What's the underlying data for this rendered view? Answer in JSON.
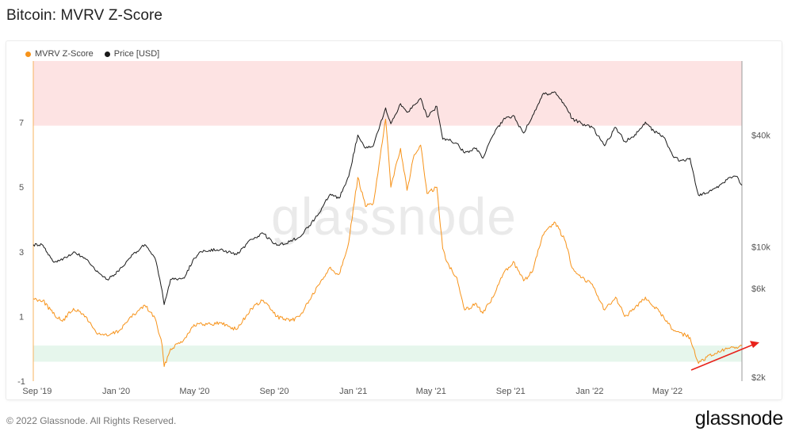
{
  "page": {
    "title": "Bitcoin: MVRV Z-Score",
    "copyright": "© 2022 Glassnode. All Rights Reserved.",
    "brand": "glassnode",
    "watermark": "glassnode"
  },
  "chart_data": {
    "type": "line",
    "title": "Bitcoin: MVRV Z-Score",
    "legend_position": "top-left",
    "grid": false,
    "x_ticks": [
      "Sep '19",
      "Jan '20",
      "May '20",
      "Sep '20",
      "Jan '21",
      "May '21",
      "Sep '21",
      "Jan '22",
      "May '22"
    ],
    "x_range": [
      "2019-08-26",
      "2022-08-24"
    ],
    "y_left": {
      "label": "",
      "ticks": [
        "-1",
        "1",
        "3",
        "5",
        "7"
      ],
      "range": [
        -1.0,
        8.9
      ]
    },
    "y_right": {
      "label": "",
      "scale": "log",
      "ticks": [
        "$2k",
        "$6k",
        "$10k",
        "$40k"
      ],
      "range": [
        1900,
        100000
      ]
    },
    "bands": [
      {
        "name": "overvalued",
        "from": 6.9,
        "to": 8.9,
        "color": "#fde3e3"
      },
      {
        "name": "undervalued",
        "from": -0.4,
        "to": 0.1,
        "color": "#e6f6ec"
      }
    ],
    "series": [
      {
        "name": "MVRV Z-Score",
        "axis": "left",
        "color": "#f7931a",
        "points": [
          [
            "2019-08-26",
            1.55
          ],
          [
            "2019-09-10",
            1.5
          ],
          [
            "2019-09-25",
            1.1
          ],
          [
            "2019-10-10",
            0.85
          ],
          [
            "2019-10-27",
            1.25
          ],
          [
            "2019-11-15",
            1.0
          ],
          [
            "2019-12-01",
            0.5
          ],
          [
            "2019-12-18",
            0.4
          ],
          [
            "2020-01-05",
            0.55
          ],
          [
            "2020-01-20",
            0.9
          ],
          [
            "2020-02-14",
            1.35
          ],
          [
            "2020-03-01",
            0.95
          ],
          [
            "2020-03-12",
            0.1
          ],
          [
            "2020-03-15",
            -0.55
          ],
          [
            "2020-03-25",
            0.0
          ],
          [
            "2020-04-15",
            0.3
          ],
          [
            "2020-04-30",
            0.75
          ],
          [
            "2020-05-15",
            0.75
          ],
          [
            "2020-06-10",
            0.8
          ],
          [
            "2020-07-05",
            0.6
          ],
          [
            "2020-07-28",
            1.25
          ],
          [
            "2020-08-15",
            1.5
          ],
          [
            "2020-09-05",
            1.0
          ],
          [
            "2020-09-25",
            0.85
          ],
          [
            "2020-10-10",
            1.0
          ],
          [
            "2020-10-25",
            1.5
          ],
          [
            "2020-11-10",
            2.0
          ],
          [
            "2020-11-25",
            2.5
          ],
          [
            "2020-12-10",
            2.3
          ],
          [
            "2020-12-25",
            3.3
          ],
          [
            "2021-01-08",
            5.3
          ],
          [
            "2021-01-20",
            4.4
          ],
          [
            "2021-02-01",
            4.5
          ],
          [
            "2021-02-20",
            7.1
          ],
          [
            "2021-02-28",
            5.0
          ],
          [
            "2021-03-08",
            5.7
          ],
          [
            "2021-03-15",
            6.2
          ],
          [
            "2021-03-25",
            4.9
          ],
          [
            "2021-04-05",
            6.0
          ],
          [
            "2021-04-15",
            6.3
          ],
          [
            "2021-04-25",
            4.8
          ],
          [
            "2021-05-10",
            5.0
          ],
          [
            "2021-05-19",
            3.1
          ],
          [
            "2021-05-25",
            2.7
          ],
          [
            "2021-06-10",
            2.2
          ],
          [
            "2021-06-22",
            1.2
          ],
          [
            "2021-07-10",
            1.4
          ],
          [
            "2021-07-20",
            1.1
          ],
          [
            "2021-08-05",
            1.6
          ],
          [
            "2021-08-20",
            2.3
          ],
          [
            "2021-09-05",
            2.7
          ],
          [
            "2021-09-21",
            2.1
          ],
          [
            "2021-10-05",
            2.4
          ],
          [
            "2021-10-20",
            3.5
          ],
          [
            "2021-11-09",
            3.9
          ],
          [
            "2021-11-25",
            3.3
          ],
          [
            "2021-12-05",
            2.5
          ],
          [
            "2021-12-20",
            2.2
          ],
          [
            "2022-01-05",
            2.0
          ],
          [
            "2022-01-24",
            1.2
          ],
          [
            "2022-02-10",
            1.6
          ],
          [
            "2022-02-24",
            1.0
          ],
          [
            "2022-03-10",
            1.2
          ],
          [
            "2022-03-28",
            1.6
          ],
          [
            "2022-04-10",
            1.3
          ],
          [
            "2022-04-25",
            1.0
          ],
          [
            "2022-05-09",
            0.6
          ],
          [
            "2022-05-20",
            0.5
          ],
          [
            "2022-06-05",
            0.35
          ],
          [
            "2022-06-13",
            -0.2
          ],
          [
            "2022-06-18",
            -0.45
          ],
          [
            "2022-07-01",
            -0.25
          ],
          [
            "2022-07-15",
            -0.15
          ],
          [
            "2022-08-01",
            0.0
          ],
          [
            "2022-08-15",
            0.05
          ],
          [
            "2022-08-24",
            0.1
          ]
        ]
      },
      {
        "name": "Price [USD]",
        "axis": "right",
        "color": "#1a1a1a",
        "points": [
          [
            "2019-08-26",
            10300
          ],
          [
            "2019-09-10",
            10200
          ],
          [
            "2019-09-25",
            8400
          ],
          [
            "2019-10-10",
            8500
          ],
          [
            "2019-10-27",
            9400
          ],
          [
            "2019-11-15",
            8600
          ],
          [
            "2019-12-01",
            7400
          ],
          [
            "2019-12-18",
            6700
          ],
          [
            "2020-01-05",
            7400
          ],
          [
            "2020-01-20",
            8600
          ],
          [
            "2020-02-14",
            10300
          ],
          [
            "2020-03-01",
            8700
          ],
          [
            "2020-03-12",
            5800
          ],
          [
            "2020-03-15",
            4900
          ],
          [
            "2020-03-25",
            6700
          ],
          [
            "2020-04-15",
            6800
          ],
          [
            "2020-04-30",
            8700
          ],
          [
            "2020-05-15",
            9600
          ],
          [
            "2020-06-10",
            9700
          ],
          [
            "2020-07-05",
            9100
          ],
          [
            "2020-07-28",
            11000
          ],
          [
            "2020-08-15",
            11800
          ],
          [
            "2020-09-05",
            10200
          ],
          [
            "2020-09-25",
            10700
          ],
          [
            "2020-10-10",
            11300
          ],
          [
            "2020-10-25",
            13000
          ],
          [
            "2020-11-10",
            15300
          ],
          [
            "2020-11-25",
            19000
          ],
          [
            "2020-12-10",
            18300
          ],
          [
            "2020-12-25",
            24000
          ],
          [
            "2021-01-08",
            40000
          ],
          [
            "2021-01-20",
            34000
          ],
          [
            "2021-02-01",
            35000
          ],
          [
            "2021-02-20",
            56000
          ],
          [
            "2021-02-28",
            46000
          ],
          [
            "2021-03-08",
            52000
          ],
          [
            "2021-03-15",
            59000
          ],
          [
            "2021-03-25",
            53000
          ],
          [
            "2021-04-05",
            58000
          ],
          [
            "2021-04-15",
            63000
          ],
          [
            "2021-04-25",
            50000
          ],
          [
            "2021-05-10",
            57000
          ],
          [
            "2021-05-19",
            38000
          ],
          [
            "2021-05-25",
            38000
          ],
          [
            "2021-06-10",
            36000
          ],
          [
            "2021-06-22",
            32000
          ],
          [
            "2021-07-10",
            34000
          ],
          [
            "2021-07-20",
            30000
          ],
          [
            "2021-08-05",
            40000
          ],
          [
            "2021-08-20",
            48000
          ],
          [
            "2021-09-05",
            51000
          ],
          [
            "2021-09-21",
            41000
          ],
          [
            "2021-10-05",
            51000
          ],
          [
            "2021-10-20",
            66000
          ],
          [
            "2021-11-09",
            68000
          ],
          [
            "2021-11-25",
            57000
          ],
          [
            "2021-12-05",
            49000
          ],
          [
            "2021-12-20",
            46000
          ],
          [
            "2022-01-05",
            44000
          ],
          [
            "2022-01-24",
            35000
          ],
          [
            "2022-02-10",
            44000
          ],
          [
            "2022-02-24",
            37000
          ],
          [
            "2022-03-10",
            39000
          ],
          [
            "2022-03-28",
            47000
          ],
          [
            "2022-04-10",
            42000
          ],
          [
            "2022-04-25",
            39000
          ],
          [
            "2022-05-09",
            31000
          ],
          [
            "2022-05-20",
            29000
          ],
          [
            "2022-06-05",
            30000
          ],
          [
            "2022-06-13",
            22000
          ],
          [
            "2022-06-18",
            19000
          ],
          [
            "2022-07-01",
            19500
          ],
          [
            "2022-07-15",
            20800
          ],
          [
            "2022-08-01",
            23000
          ],
          [
            "2022-08-15",
            24000
          ],
          [
            "2022-08-24",
            21500
          ]
        ]
      }
    ],
    "annotation": {
      "type": "arrow",
      "color": "#e8221b",
      "points_to": [
        "2022-08-24",
        0.1
      ]
    }
  }
}
